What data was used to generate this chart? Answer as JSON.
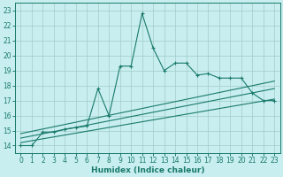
{
  "title": "",
  "xlabel": "Humidex (Indice chaleur)",
  "ylabel": "",
  "bg_color": "#c8eef0",
  "grid_color": "#a0ccc8",
  "line_color": "#1a7a6a",
  "xlim": [
    -0.5,
    23.5
  ],
  "ylim": [
    13.5,
    23.5
  ],
  "xticks": [
    0,
    1,
    2,
    3,
    4,
    5,
    6,
    7,
    8,
    9,
    10,
    11,
    12,
    13,
    14,
    15,
    16,
    17,
    18,
    19,
    20,
    21,
    22,
    23
  ],
  "yticks": [
    14,
    15,
    16,
    17,
    18,
    19,
    20,
    21,
    22,
    23
  ],
  "main_x": [
    0,
    1,
    2,
    3,
    4,
    5,
    6,
    7,
    8,
    9,
    10,
    11,
    12,
    13,
    14,
    15,
    16,
    17,
    18,
    19,
    20,
    21,
    22,
    23
  ],
  "main_y": [
    14.0,
    14.0,
    14.9,
    14.9,
    15.1,
    15.2,
    15.3,
    17.8,
    16.0,
    19.3,
    19.3,
    22.8,
    20.5,
    19.0,
    19.5,
    19.5,
    18.7,
    18.8,
    18.5,
    18.5,
    18.5,
    17.5,
    17.0,
    17.0
  ],
  "line1_x": [
    0,
    23
  ],
  "line1_y": [
    14.8,
    18.3
  ],
  "line2_x": [
    0,
    23
  ],
  "line2_y": [
    14.5,
    17.8
  ],
  "line3_x": [
    0,
    23
  ],
  "line3_y": [
    14.2,
    17.1
  ]
}
